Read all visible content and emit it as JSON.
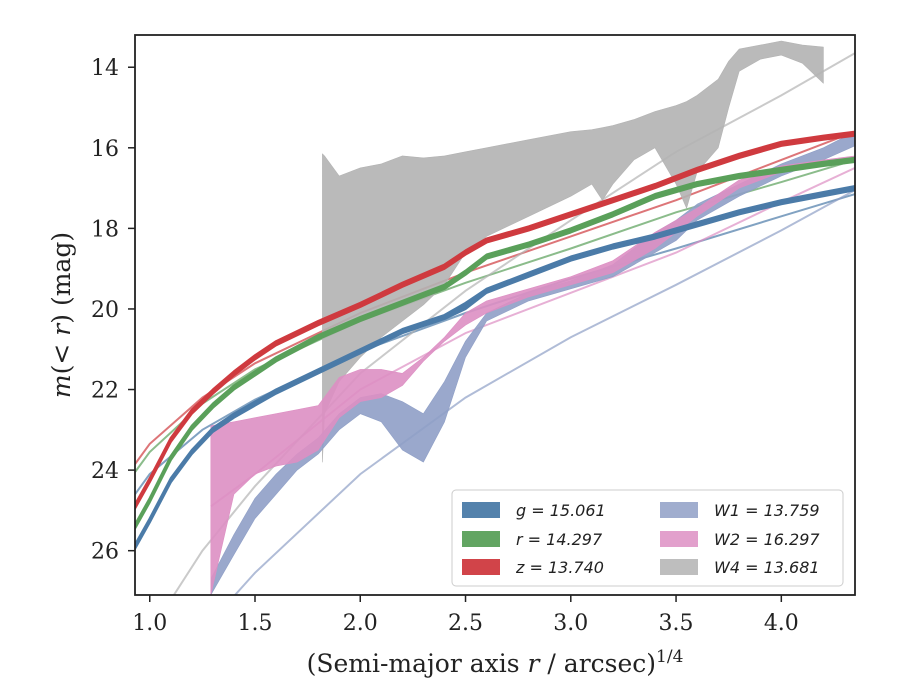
{
  "chart_data": {
    "type": "line",
    "xlabel": "(Semi-major axis r / arcsec)^1/4",
    "ylabel": "m(< r) (mag)",
    "xlim": [
      0.93,
      4.35
    ],
    "ylim": [
      27.1,
      13.2
    ],
    "y_inverted": true,
    "grid": false,
    "legend_position": "lower-right",
    "x_ticks": [
      1.0,
      1.5,
      2.0,
      2.5,
      3.0,
      3.5,
      4.0
    ],
    "x_tick_labels": [
      "1.0",
      "1.5",
      "2.0",
      "2.5",
      "3.0",
      "3.5",
      "4.0"
    ],
    "y_ticks": [
      14,
      16,
      18,
      20,
      22,
      24,
      26
    ],
    "y_tick_labels": [
      "14",
      "16",
      "18",
      "20",
      "22",
      "24",
      "26"
    ],
    "series": [
      {
        "name": "g = 15.061",
        "legend_label": "g = 15.061",
        "color": "#4b7ba8",
        "x": [
          0.93,
          1.0,
          1.1,
          1.2,
          1.3,
          1.4,
          1.5,
          1.6,
          1.8,
          2.0,
          2.2,
          2.4,
          2.5,
          2.6,
          2.8,
          3.0,
          3.2,
          3.4,
          3.6,
          3.8,
          4.0,
          4.2,
          4.35
        ],
        "y_lower": [
          25.95,
          25.3,
          24.3,
          23.6,
          23.05,
          22.7,
          22.4,
          22.1,
          21.6,
          21.1,
          20.6,
          20.25,
          20.0,
          19.6,
          19.2,
          18.8,
          18.5,
          18.25,
          17.95,
          17.65,
          17.4,
          17.2,
          17.05
        ],
        "y_upper": [
          25.85,
          25.2,
          24.2,
          23.5,
          22.95,
          22.6,
          22.3,
          22.0,
          21.5,
          21.0,
          20.5,
          20.15,
          19.85,
          19.5,
          19.1,
          18.7,
          18.4,
          18.15,
          17.85,
          17.55,
          17.3,
          17.1,
          16.95
        ],
        "fit_x": [
          0.93,
          1.0,
          1.25,
          1.5,
          2.0,
          2.5,
          3.0,
          3.5,
          4.0,
          4.35
        ],
        "fit_y": [
          24.6,
          24.1,
          23.0,
          22.25,
          21.05,
          20.1,
          19.25,
          18.5,
          17.7,
          17.15
        ]
      },
      {
        "name": "r = 14.297",
        "legend_label": "r = 14.297",
        "color": "#5aa05a",
        "x": [
          0.93,
          1.0,
          1.1,
          1.2,
          1.3,
          1.4,
          1.5,
          1.6,
          1.8,
          2.0,
          2.2,
          2.4,
          2.5,
          2.6,
          2.8,
          3.0,
          3.2,
          3.4,
          3.6,
          3.8,
          4.0,
          4.2,
          4.35
        ],
        "y_lower": [
          25.45,
          24.8,
          23.75,
          23.0,
          22.45,
          22.0,
          21.65,
          21.3,
          20.75,
          20.3,
          19.9,
          19.5,
          19.15,
          18.75,
          18.45,
          18.1,
          17.7,
          17.25,
          16.95,
          16.75,
          16.6,
          16.45,
          16.35
        ],
        "y_upper": [
          25.35,
          24.7,
          23.65,
          22.9,
          22.35,
          21.9,
          21.55,
          21.2,
          20.65,
          20.2,
          19.8,
          19.4,
          19.05,
          18.65,
          18.35,
          18.0,
          17.6,
          17.15,
          16.85,
          16.65,
          16.5,
          16.35,
          16.25
        ],
        "fit_x": [
          0.93,
          1.0,
          1.25,
          1.5,
          2.0,
          2.5,
          3.0,
          3.5,
          4.0,
          4.35
        ],
        "fit_y": [
          24.05,
          23.55,
          22.35,
          21.5,
          20.3,
          19.35,
          18.5,
          17.6,
          16.85,
          16.3
        ]
      },
      {
        "name": "z = 13.740",
        "legend_label": "z = 13.740",
        "color": "#cf3a3f",
        "x": [
          0.93,
          1.0,
          1.1,
          1.2,
          1.3,
          1.4,
          1.5,
          1.6,
          1.8,
          2.0,
          2.2,
          2.4,
          2.5,
          2.6,
          2.8,
          3.0,
          3.2,
          3.4,
          3.6,
          3.8,
          4.0,
          4.2,
          4.35
        ],
        "y_lower": [
          24.95,
          24.3,
          23.3,
          22.6,
          22.1,
          21.65,
          21.25,
          20.9,
          20.4,
          19.95,
          19.45,
          19.0,
          18.65,
          18.35,
          18.05,
          17.7,
          17.35,
          17.0,
          16.6,
          16.25,
          15.95,
          15.8,
          15.7
        ],
        "y_upper": [
          24.85,
          24.2,
          23.2,
          22.5,
          22.0,
          21.55,
          21.15,
          20.8,
          20.3,
          19.85,
          19.35,
          18.9,
          18.55,
          18.25,
          17.95,
          17.6,
          17.25,
          16.9,
          16.5,
          16.15,
          15.85,
          15.7,
          15.6
        ],
        "fit_x": [
          0.93,
          1.0,
          1.25,
          1.5,
          2.0,
          2.5,
          3.0,
          3.5,
          4.0,
          4.35
        ],
        "fit_y": [
          23.85,
          23.35,
          22.2,
          21.35,
          20.1,
          19.1,
          18.2,
          17.3,
          16.3,
          15.6
        ]
      },
      {
        "name": "W1 = 13.759",
        "legend_label": "W1 = 13.759",
        "color": "#8f9fc6",
        "x": [
          1.29,
          1.4,
          1.5,
          1.6,
          1.7,
          1.8,
          1.9,
          2.0,
          2.1,
          2.2,
          2.3,
          2.4,
          2.5,
          2.6,
          2.8,
          3.0,
          3.2,
          3.4,
          3.5,
          3.6,
          3.8,
          4.0,
          4.2,
          4.35
        ],
        "y_lower": [
          27.1,
          26.1,
          25.2,
          24.6,
          24.0,
          23.6,
          23.0,
          22.6,
          22.8,
          23.5,
          23.8,
          22.8,
          21.2,
          20.3,
          19.8,
          19.5,
          19.2,
          18.6,
          18.3,
          17.8,
          17.2,
          16.7,
          16.3,
          15.95
        ],
        "y_upper": [
          26.7,
          25.6,
          24.7,
          24.1,
          23.6,
          23.2,
          22.6,
          22.2,
          22.1,
          22.3,
          22.6,
          21.8,
          20.8,
          20.1,
          19.6,
          19.3,
          18.9,
          18.1,
          17.8,
          17.4,
          16.9,
          16.4,
          16.0,
          15.6
        ],
        "fit_x": [
          0.93,
          1.25,
          1.5,
          2.0,
          2.5,
          3.0,
          3.5,
          4.0,
          4.35
        ],
        "fit_y": [
          30.5,
          28.0,
          26.55,
          24.1,
          22.2,
          20.7,
          19.4,
          18.05,
          17.05
        ]
      },
      {
        "name": "W2 = 16.297",
        "legend_label": "W2 = 16.297",
        "color": "#dd8fc3",
        "x": [
          1.29,
          1.4,
          1.5,
          1.6,
          1.7,
          1.8,
          1.9,
          2.0,
          2.1,
          2.2,
          2.3,
          2.4,
          2.5,
          2.6,
          2.8,
          3.0,
          3.2,
          3.4,
          3.5,
          3.6,
          3.8,
          4.0,
          4.2,
          4.35
        ],
        "y_lower": [
          27.1,
          24.6,
          24.1,
          23.9,
          23.8,
          23.5,
          22.7,
          22.3,
          22.2,
          21.9,
          21.3,
          20.8,
          20.4,
          20.1,
          19.7,
          19.4,
          19.1,
          18.5,
          18.1,
          17.7,
          17.0,
          16.6,
          16.45,
          16.35
        ],
        "y_upper": [
          22.9,
          22.8,
          22.7,
          22.6,
          22.5,
          22.4,
          21.7,
          21.5,
          21.5,
          21.6,
          21.2,
          20.7,
          20.1,
          19.8,
          19.5,
          19.2,
          18.8,
          18.1,
          17.8,
          17.5,
          16.8,
          16.45,
          16.3,
          16.2
        ],
        "fit_x": [
          1.29,
          1.5,
          2.0,
          2.5,
          3.0,
          3.5,
          4.0,
          4.35
        ],
        "fit_y": [
          24.9,
          24.1,
          22.0,
          20.6,
          19.6,
          18.6,
          17.35,
          16.5
        ]
      },
      {
        "name": "W4 = 13.681",
        "legend_label": "W4 = 13.681",
        "color": "#b3b3b3",
        "x": [
          1.82,
          1.83,
          1.9,
          2.0,
          2.1,
          2.2,
          2.3,
          2.4,
          2.5,
          2.6,
          2.8,
          3.0,
          3.1,
          3.15,
          3.2,
          3.3,
          3.4,
          3.5,
          3.55,
          3.6,
          3.7,
          3.75,
          3.8,
          3.9,
          4.0,
          4.1,
          4.2
        ],
        "y_lower": [
          23.8,
          22.6,
          21.8,
          21.2,
          20.7,
          20.3,
          19.9,
          19.4,
          18.6,
          18.2,
          17.7,
          17.2,
          16.9,
          17.3,
          16.9,
          16.3,
          16.0,
          16.9,
          17.5,
          16.6,
          16.0,
          15.0,
          14.1,
          13.8,
          13.7,
          13.9,
          14.4
        ],
        "y_upper": [
          16.15,
          16.2,
          16.7,
          16.5,
          16.4,
          16.2,
          16.25,
          16.2,
          16.1,
          16.0,
          15.8,
          15.6,
          15.55,
          15.5,
          15.45,
          15.3,
          15.1,
          14.95,
          14.85,
          14.7,
          14.3,
          13.85,
          13.55,
          13.45,
          13.35,
          13.45,
          13.5
        ],
        "fit_x": [
          0.93,
          1.25,
          1.5,
          2.0,
          2.5,
          3.0,
          3.5,
          4.0,
          4.35
        ],
        "fit_y": [
          28.6,
          26.0,
          24.4,
          21.6,
          19.55,
          17.8,
          16.1,
          14.7,
          13.65
        ]
      }
    ]
  }
}
